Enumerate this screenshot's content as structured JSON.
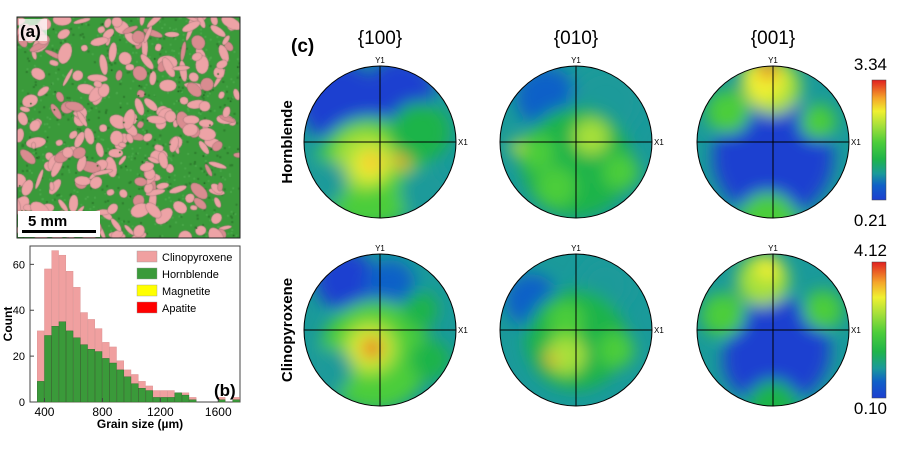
{
  "panel_a": {
    "label": "(a)",
    "scale_bar": "5 mm"
  },
  "panel_b": {
    "label": "(b)"
  },
  "panel_c": {
    "label": "(c)",
    "columns": [
      "{100}",
      "{010}",
      "{001}"
    ],
    "rows": [
      "Hornblende",
      "Clinopyroxene"
    ],
    "axis_y": "Y1",
    "axis_x": "X1",
    "colorbars": [
      {
        "max": "3.34",
        "min": "0.21"
      },
      {
        "max": "4.12",
        "min": "0.10"
      }
    ]
  },
  "colors": {
    "clinopyroxene": "#f0a0a0",
    "hornblende": "#3a9a3a",
    "magnetite": "#ffff00",
    "apatite": "#ff0000"
  },
  "chart_data": {
    "type": "bar",
    "xlabel": "Grain size (µm)",
    "ylabel": "Count",
    "xlim": [
      300,
      1750
    ],
    "ylim": [
      0,
      68
    ],
    "xticks": [
      "400",
      "800",
      "1200",
      "1600"
    ],
    "xtick_values": [
      400,
      800,
      1200,
      1600
    ],
    "yticks": [
      "0",
      "20",
      "40",
      "60"
    ],
    "ytick_values": [
      0,
      20,
      40,
      60
    ],
    "bin_width": 50,
    "bin_starts": [
      350,
      400,
      450,
      500,
      550,
      600,
      650,
      700,
      750,
      800,
      850,
      900,
      950,
      1000,
      1050,
      1100,
      1150,
      1200,
      1250,
      1300,
      1350,
      1400,
      1450,
      1500,
      1550,
      1600,
      1650,
      1700
    ],
    "legend_position": "top-right",
    "series": [
      {
        "name": "Clinopyroxene",
        "color": "#f0a0a0",
        "values": [
          31,
          58,
          66,
          64,
          57,
          50,
          39,
          36,
          32,
          26,
          24,
          18,
          14,
          12,
          9,
          7,
          5,
          5,
          5,
          4,
          4,
          2,
          0,
          0,
          0,
          2,
          0,
          2
        ]
      },
      {
        "name": "Hornblende",
        "color": "#3a9a3a",
        "values": [
          9,
          29,
          33,
          35,
          31,
          28,
          25,
          23,
          22,
          19,
          17,
          14,
          11,
          8,
          6,
          5,
          2,
          2,
          2,
          4,
          3,
          1,
          0,
          0,
          0,
          1,
          0,
          1
        ]
      },
      {
        "name": "Magnetite",
        "color": "#ffff00",
        "values": []
      },
      {
        "name": "Apatite",
        "color": "#ff0000",
        "values": []
      }
    ]
  }
}
